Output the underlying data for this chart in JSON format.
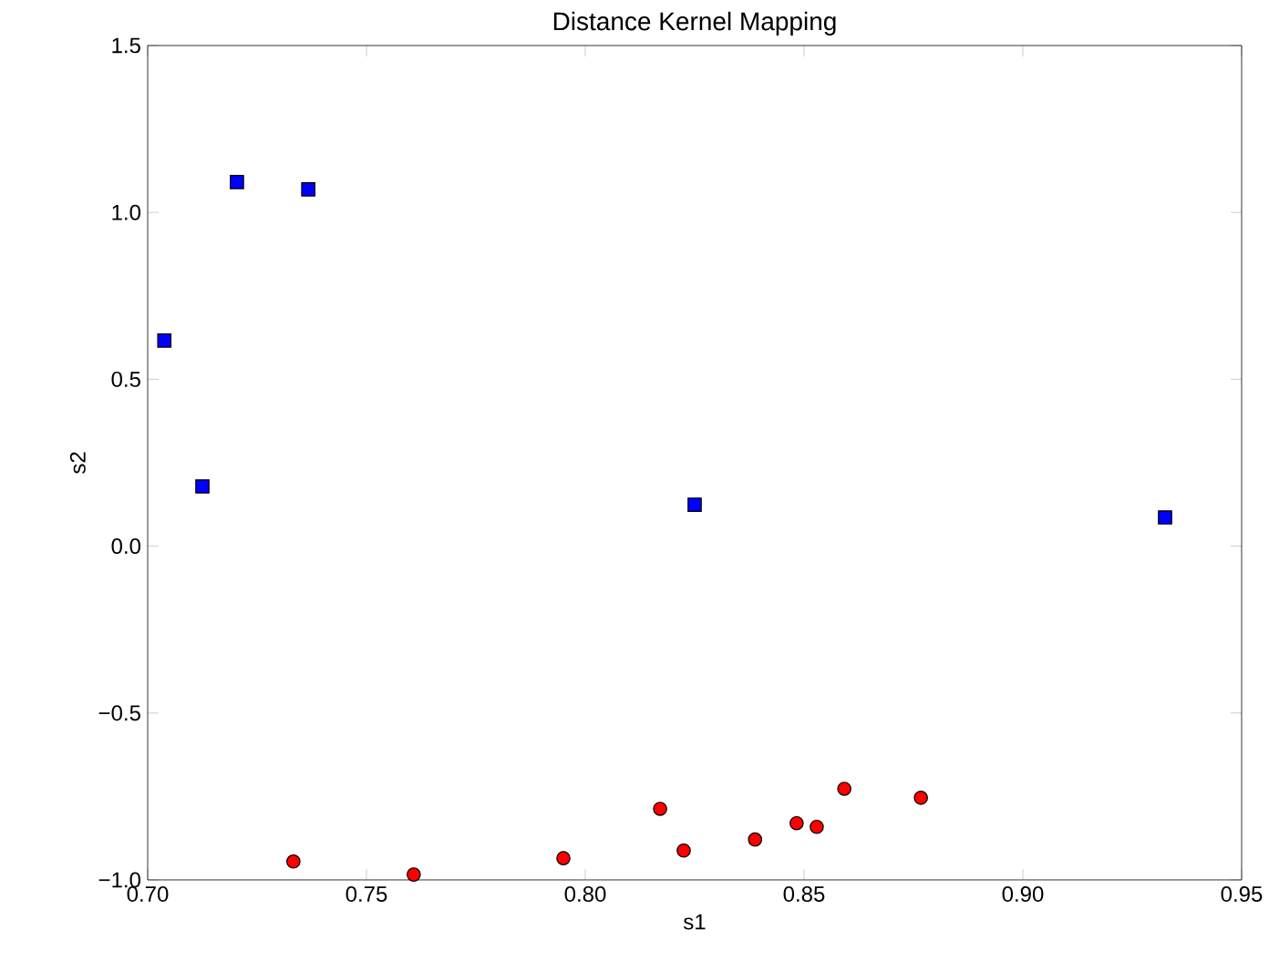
{
  "chart_data": {
    "type": "scatter",
    "title": "Distance Kernel Mapping",
    "xlabel": "s1",
    "ylabel": "s2",
    "xlim": [
      0.7,
      0.95
    ],
    "ylim": [
      -1.0,
      1.5
    ],
    "xticks": [
      {
        "value": 0.7,
        "label": "0.70"
      },
      {
        "value": 0.75,
        "label": "0.75"
      },
      {
        "value": 0.8,
        "label": "0.80"
      },
      {
        "value": 0.85,
        "label": "0.85"
      },
      {
        "value": 0.9,
        "label": "0.90"
      },
      {
        "value": 0.95,
        "label": "0.95"
      }
    ],
    "yticks": [
      {
        "value": -1.0,
        "label": "−1.0"
      },
      {
        "value": -0.5,
        "label": "−0.5"
      },
      {
        "value": 0.0,
        "label": "0.0"
      },
      {
        "value": 0.5,
        "label": "0.5"
      },
      {
        "value": 1.0,
        "label": "1.0"
      },
      {
        "value": 1.5,
        "label": "1.5"
      }
    ],
    "series": [
      {
        "color": "#0000ff",
        "marker": "square",
        "x": [
          0.7204,
          0.7367,
          0.7038,
          0.7125,
          0.825,
          0.9325
        ],
        "values": [
          1.091,
          1.069,
          0.616,
          0.179,
          0.124,
          0.086
        ]
      },
      {
        "color": "#ff0000",
        "marker": "circle",
        "x": [
          0.7333,
          0.7608,
          0.795,
          0.8171,
          0.8225,
          0.8388,
          0.8483,
          0.8529,
          0.8592,
          0.8767
        ],
        "values": [
          -0.945,
          -0.984,
          -0.935,
          -0.787,
          -0.912,
          -0.879,
          -0.83,
          -0.841,
          -0.727,
          -0.754
        ]
      }
    ]
  }
}
